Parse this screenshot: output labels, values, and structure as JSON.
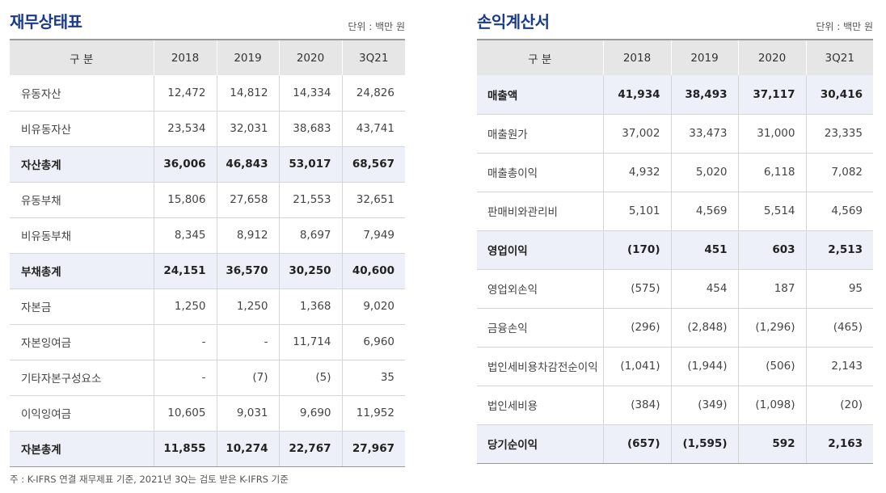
{
  "balance_sheet": {
    "title": "재무상태표",
    "unit": "단위 : 백만 원",
    "headers": [
      "구 분",
      "2018",
      "2019",
      "2020",
      "3Q21"
    ],
    "rows": [
      {
        "label": "유동자산",
        "values": [
          "12,472",
          "14,812",
          "14,334",
          "24,826"
        ],
        "total": false
      },
      {
        "label": "비유동자산",
        "values": [
          "23,534",
          "32,031",
          "38,683",
          "43,741"
        ],
        "total": false
      },
      {
        "label": "자산총계",
        "values": [
          "36,006",
          "46,843",
          "53,017",
          "68,567"
        ],
        "total": true
      },
      {
        "label": "유동부채",
        "values": [
          "15,806",
          "27,658",
          "21,553",
          "32,651"
        ],
        "total": false
      },
      {
        "label": "비유동부채",
        "values": [
          "8,345",
          "8,912",
          "8,697",
          "7,949"
        ],
        "total": false
      },
      {
        "label": "부채총계",
        "values": [
          "24,151",
          "36,570",
          "30,250",
          "40,600"
        ],
        "total": true
      },
      {
        "label": "자본금",
        "values": [
          "1,250",
          "1,250",
          "1,368",
          "9,020"
        ],
        "total": false
      },
      {
        "label": "자본잉여금",
        "values": [
          "-",
          "-",
          "11,714",
          "6,960"
        ],
        "total": false
      },
      {
        "label": "기타자본구성요소",
        "values": [
          "-",
          "(7)",
          "(5)",
          "35"
        ],
        "total": false
      },
      {
        "label": "이익잉여금",
        "values": [
          "10,605",
          "9,031",
          "9,690",
          "11,952"
        ],
        "total": false
      },
      {
        "label": "자본총계",
        "values": [
          "11,855",
          "10,274",
          "22,767",
          "27,967"
        ],
        "total": true
      }
    ]
  },
  "income_statement": {
    "title": "손익계산서",
    "unit": "단위 : 백만 원",
    "headers": [
      "구 분",
      "2018",
      "2019",
      "2020",
      "3Q21"
    ],
    "rows": [
      {
        "label": "매출액",
        "values": [
          "41,934",
          "38,493",
          "37,117",
          "30,416"
        ],
        "total": true
      },
      {
        "label": "매출원가",
        "values": [
          "37,002",
          "33,473",
          "31,000",
          "23,335"
        ],
        "total": false
      },
      {
        "label": "매출총이익",
        "values": [
          "4,932",
          "5,020",
          "6,118",
          "7,082"
        ],
        "total": false
      },
      {
        "label": "판매비와관리비",
        "values": [
          "5,101",
          "4,569",
          "5,514",
          "4,569"
        ],
        "total": false
      },
      {
        "label": "영업이익",
        "values": [
          "(170)",
          "451",
          "603",
          "2,513"
        ],
        "total": true
      },
      {
        "label": "영업외손익",
        "values": [
          "(575)",
          "454",
          "187",
          "95"
        ],
        "total": false
      },
      {
        "label": "금융손익",
        "values": [
          "(296)",
          "(2,848)",
          "(1,296)",
          "(465)"
        ],
        "total": false
      },
      {
        "label": "법인세비용차감전순이익",
        "values": [
          "(1,041)",
          "(1,944)",
          "(506)",
          "2,143"
        ],
        "total": false
      },
      {
        "label": "법인세비용",
        "values": [
          "(384)",
          "(349)",
          "(1,098)",
          "(20)"
        ],
        "total": false
      },
      {
        "label": "당기순이익",
        "values": [
          "(657)",
          "(1,595)",
          "592",
          "2,163"
        ],
        "total": true
      }
    ]
  },
  "footnote": "주 : K-IFRS 연결 재무제표 기준, 2021년 3Q는 검토 받은 K-IFRS 기준"
}
